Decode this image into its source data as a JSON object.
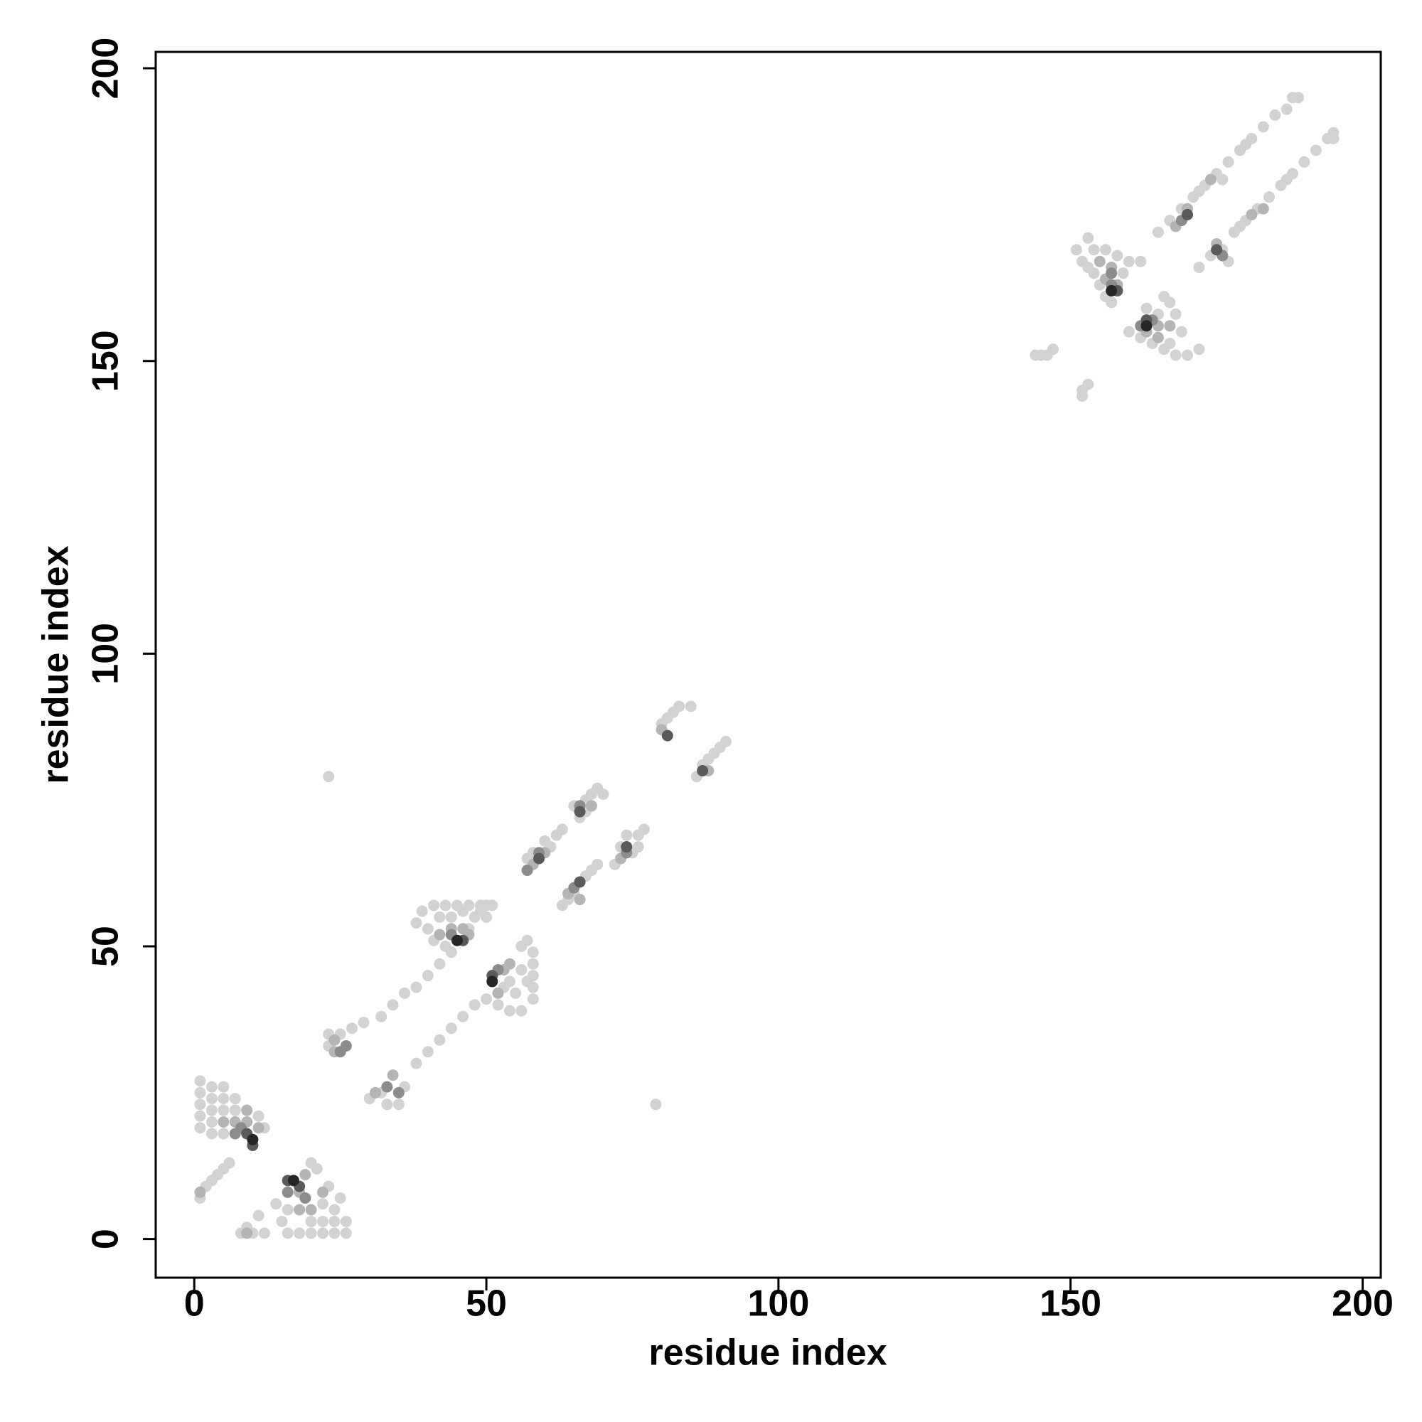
{
  "chart_data": {
    "type": "scatter",
    "xlabel": "residue index",
    "ylabel": "residue index",
    "xlim": [
      -6.6,
      203.1
    ],
    "ylim": [
      -6.6,
      202.8
    ],
    "xticks": [
      0,
      50,
      100,
      150,
      200
    ],
    "yticks": [
      0,
      50,
      100,
      150,
      200
    ],
    "series": [
      {
        "color": "#d2d2d2",
        "x": [
          1,
          1,
          1,
          1,
          1,
          3,
          3,
          3,
          3,
          5,
          5,
          5,
          7,
          7,
          11,
          12,
          3,
          5,
          1,
          2,
          3,
          4,
          5,
          6,
          16,
          18,
          20,
          22,
          24,
          26,
          20,
          22,
          24,
          26,
          24,
          22,
          20,
          21,
          23,
          25,
          16,
          14,
          15,
          8,
          9,
          11,
          12,
          10,
          23,
          23,
          25,
          27,
          29,
          32,
          34,
          36,
          38,
          40,
          42,
          44,
          47,
          49,
          50,
          38,
          39,
          41,
          43,
          45,
          47,
          49,
          40,
          42,
          44,
          46,
          48,
          50,
          41,
          43,
          51,
          30,
          32,
          33,
          35,
          36,
          38,
          40,
          42,
          44,
          46,
          48,
          50,
          54,
          56,
          58,
          58,
          58,
          58,
          58,
          57,
          56,
          56,
          54,
          55,
          52,
          53,
          57,
          57,
          58,
          61,
          62,
          63,
          60,
          66,
          67,
          68,
          69,
          70,
          65,
          67,
          63,
          64,
          67,
          68,
          69,
          72,
          73,
          74,
          76,
          77,
          75,
          76,
          65,
          80,
          81,
          82,
          83,
          85,
          86,
          88,
          89,
          90,
          91,
          87,
          23,
          79,
          151,
          153,
          152,
          154,
          156,
          158,
          160,
          162,
          154,
          155,
          156,
          157,
          159,
          153,
          160,
          162,
          164,
          166,
          168,
          170,
          172,
          167,
          168,
          169,
          167,
          165,
          163,
          166,
          144,
          145,
          146,
          147,
          152,
          152,
          153,
          165,
          167,
          169,
          171,
          173,
          175,
          177,
          179,
          181,
          183,
          185,
          187,
          188,
          189,
          172,
          176,
          180,
          172,
          174,
          176,
          178,
          180,
          182,
          184,
          186,
          188,
          190,
          192,
          194,
          195,
          195,
          177,
          179,
          187
        ],
        "values": [
          27,
          25,
          23,
          21,
          19,
          26,
          24,
          22,
          20,
          26,
          24,
          22,
          24,
          22,
          21,
          19,
          18,
          18,
          7,
          9,
          10,
          11,
          12,
          13,
          1,
          1,
          1,
          1,
          1,
          1,
          3,
          3,
          3,
          3,
          5,
          6,
          13,
          12,
          9,
          7,
          5,
          6,
          3,
          1,
          2,
          4,
          1,
          1,
          35,
          33,
          35,
          36,
          37,
          38,
          40,
          42,
          43,
          45,
          47,
          49,
          53,
          56,
          57,
          54,
          56,
          57,
          57,
          57,
          57,
          57,
          53,
          55,
          55,
          56,
          55,
          55,
          51,
          50,
          57,
          24,
          25,
          23,
          23,
          26,
          30,
          32,
          34,
          36,
          38,
          40,
          41,
          39,
          39,
          41,
          43,
          45,
          47,
          49,
          51,
          50,
          46,
          44,
          42,
          40,
          43,
          44,
          65,
          66,
          67,
          69,
          70,
          68,
          72,
          75,
          76,
          77,
          76,
          74,
          73,
          57,
          58,
          62,
          63,
          64,
          64,
          67,
          69,
          69,
          70,
          66,
          67,
          59,
          88,
          89,
          90,
          91,
          91,
          79,
          82,
          83,
          84,
          85,
          81,
          79,
          23,
          169,
          171,
          167,
          169,
          169,
          168,
          167,
          167,
          165,
          163,
          161,
          160,
          165,
          166,
          155,
          154,
          153,
          152,
          151,
          151,
          152,
          160,
          158,
          155,
          153,
          158,
          159,
          161,
          151,
          151,
          151,
          152,
          144,
          145,
          146,
          172,
          174,
          176,
          178,
          180,
          182,
          184,
          186,
          188,
          190,
          192,
          193,
          195,
          195,
          179,
          181,
          187,
          166,
          168,
          169,
          172,
          174,
          176,
          178,
          180,
          182,
          184,
          186,
          188,
          189,
          188,
          167,
          173,
          181
        ]
      },
      {
        "color": "#b4b4b4",
        "x": [
          5,
          7,
          9,
          9,
          11,
          1,
          18,
          20,
          22,
          19,
          18,
          9,
          24,
          24,
          44,
          46,
          47,
          42,
          31,
          34,
          53,
          52,
          54,
          58,
          60,
          68,
          64,
          66,
          73,
          80,
          88,
          155,
          157,
          156,
          158,
          165,
          167,
          163,
          165,
          168,
          170,
          174,
          175,
          181,
          183
        ],
        "values": [
          20,
          20,
          22,
          20,
          19,
          8,
          5,
          5,
          8,
          11,
          8,
          1,
          32,
          34,
          53,
          53,
          52,
          52,
          25,
          28,
          46,
          42,
          47,
          64,
          66,
          74,
          59,
          58,
          65,
          87,
          80,
          167,
          166,
          164,
          163,
          156,
          156,
          155,
          154,
          173,
          176,
          181,
          170,
          175,
          176
        ]
      },
      {
        "color": "#8c8c8c",
        "x": [
          7,
          8,
          16,
          19,
          25,
          26,
          44,
          33,
          35,
          52,
          57,
          59,
          66,
          65,
          74,
          157,
          157,
          164,
          162,
          169,
          176
        ],
        "values": [
          18,
          19,
          8,
          7,
          32,
          33,
          52,
          26,
          25,
          46,
          63,
          66,
          74,
          60,
          66,
          165,
          163,
          157,
          156,
          174,
          168
        ]
      },
      {
        "color": "#5a5a5a",
        "x": [
          9,
          10,
          16,
          18,
          46,
          51,
          59,
          66,
          66,
          74,
          81,
          87,
          158,
          163,
          170,
          175
        ],
        "values": [
          18,
          16,
          10,
          9,
          51,
          45,
          65,
          73,
          61,
          67,
          86,
          80,
          162,
          157,
          175,
          169
        ]
      },
      {
        "color": "#262626",
        "x": [
          10,
          17,
          45,
          51,
          157,
          163
        ],
        "values": [
          17,
          10,
          51,
          44,
          162,
          156
        ]
      }
    ]
  }
}
